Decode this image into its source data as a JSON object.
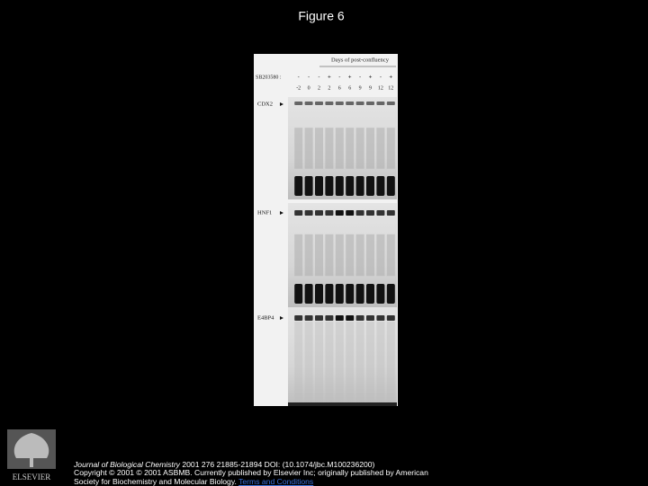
{
  "header": {
    "title": "Figure 6"
  },
  "figure": {
    "axis_title": "Days of post-confluency",
    "treatment_label": "SB203580 :",
    "treatment": [
      "-",
      "-",
      "-",
      "+",
      "-",
      "+",
      "-",
      "+",
      "-",
      "+"
    ],
    "days": [
      "-2",
      "0",
      "2",
      "2",
      "6",
      "6",
      "9",
      "9",
      "12",
      "12"
    ],
    "panels": [
      "CDX2",
      "HNF1",
      "E4BP4"
    ]
  },
  "footer": {
    "publisher": "ELSEVIER",
    "citation_journal": "Journal of Biological Chemistry",
    "citation_rest": " 2001 276 21885-21894 DOI: (10.1074/jbc.M100236200)",
    "copyright": "Copyright © 2001 © 2001 ASBMB. Currently published by Elsevier Inc; originally published by American",
    "copyright_cont": "Society for Biochemistry and Molecular Biology.",
    "terms": "Terms and Conditions"
  }
}
